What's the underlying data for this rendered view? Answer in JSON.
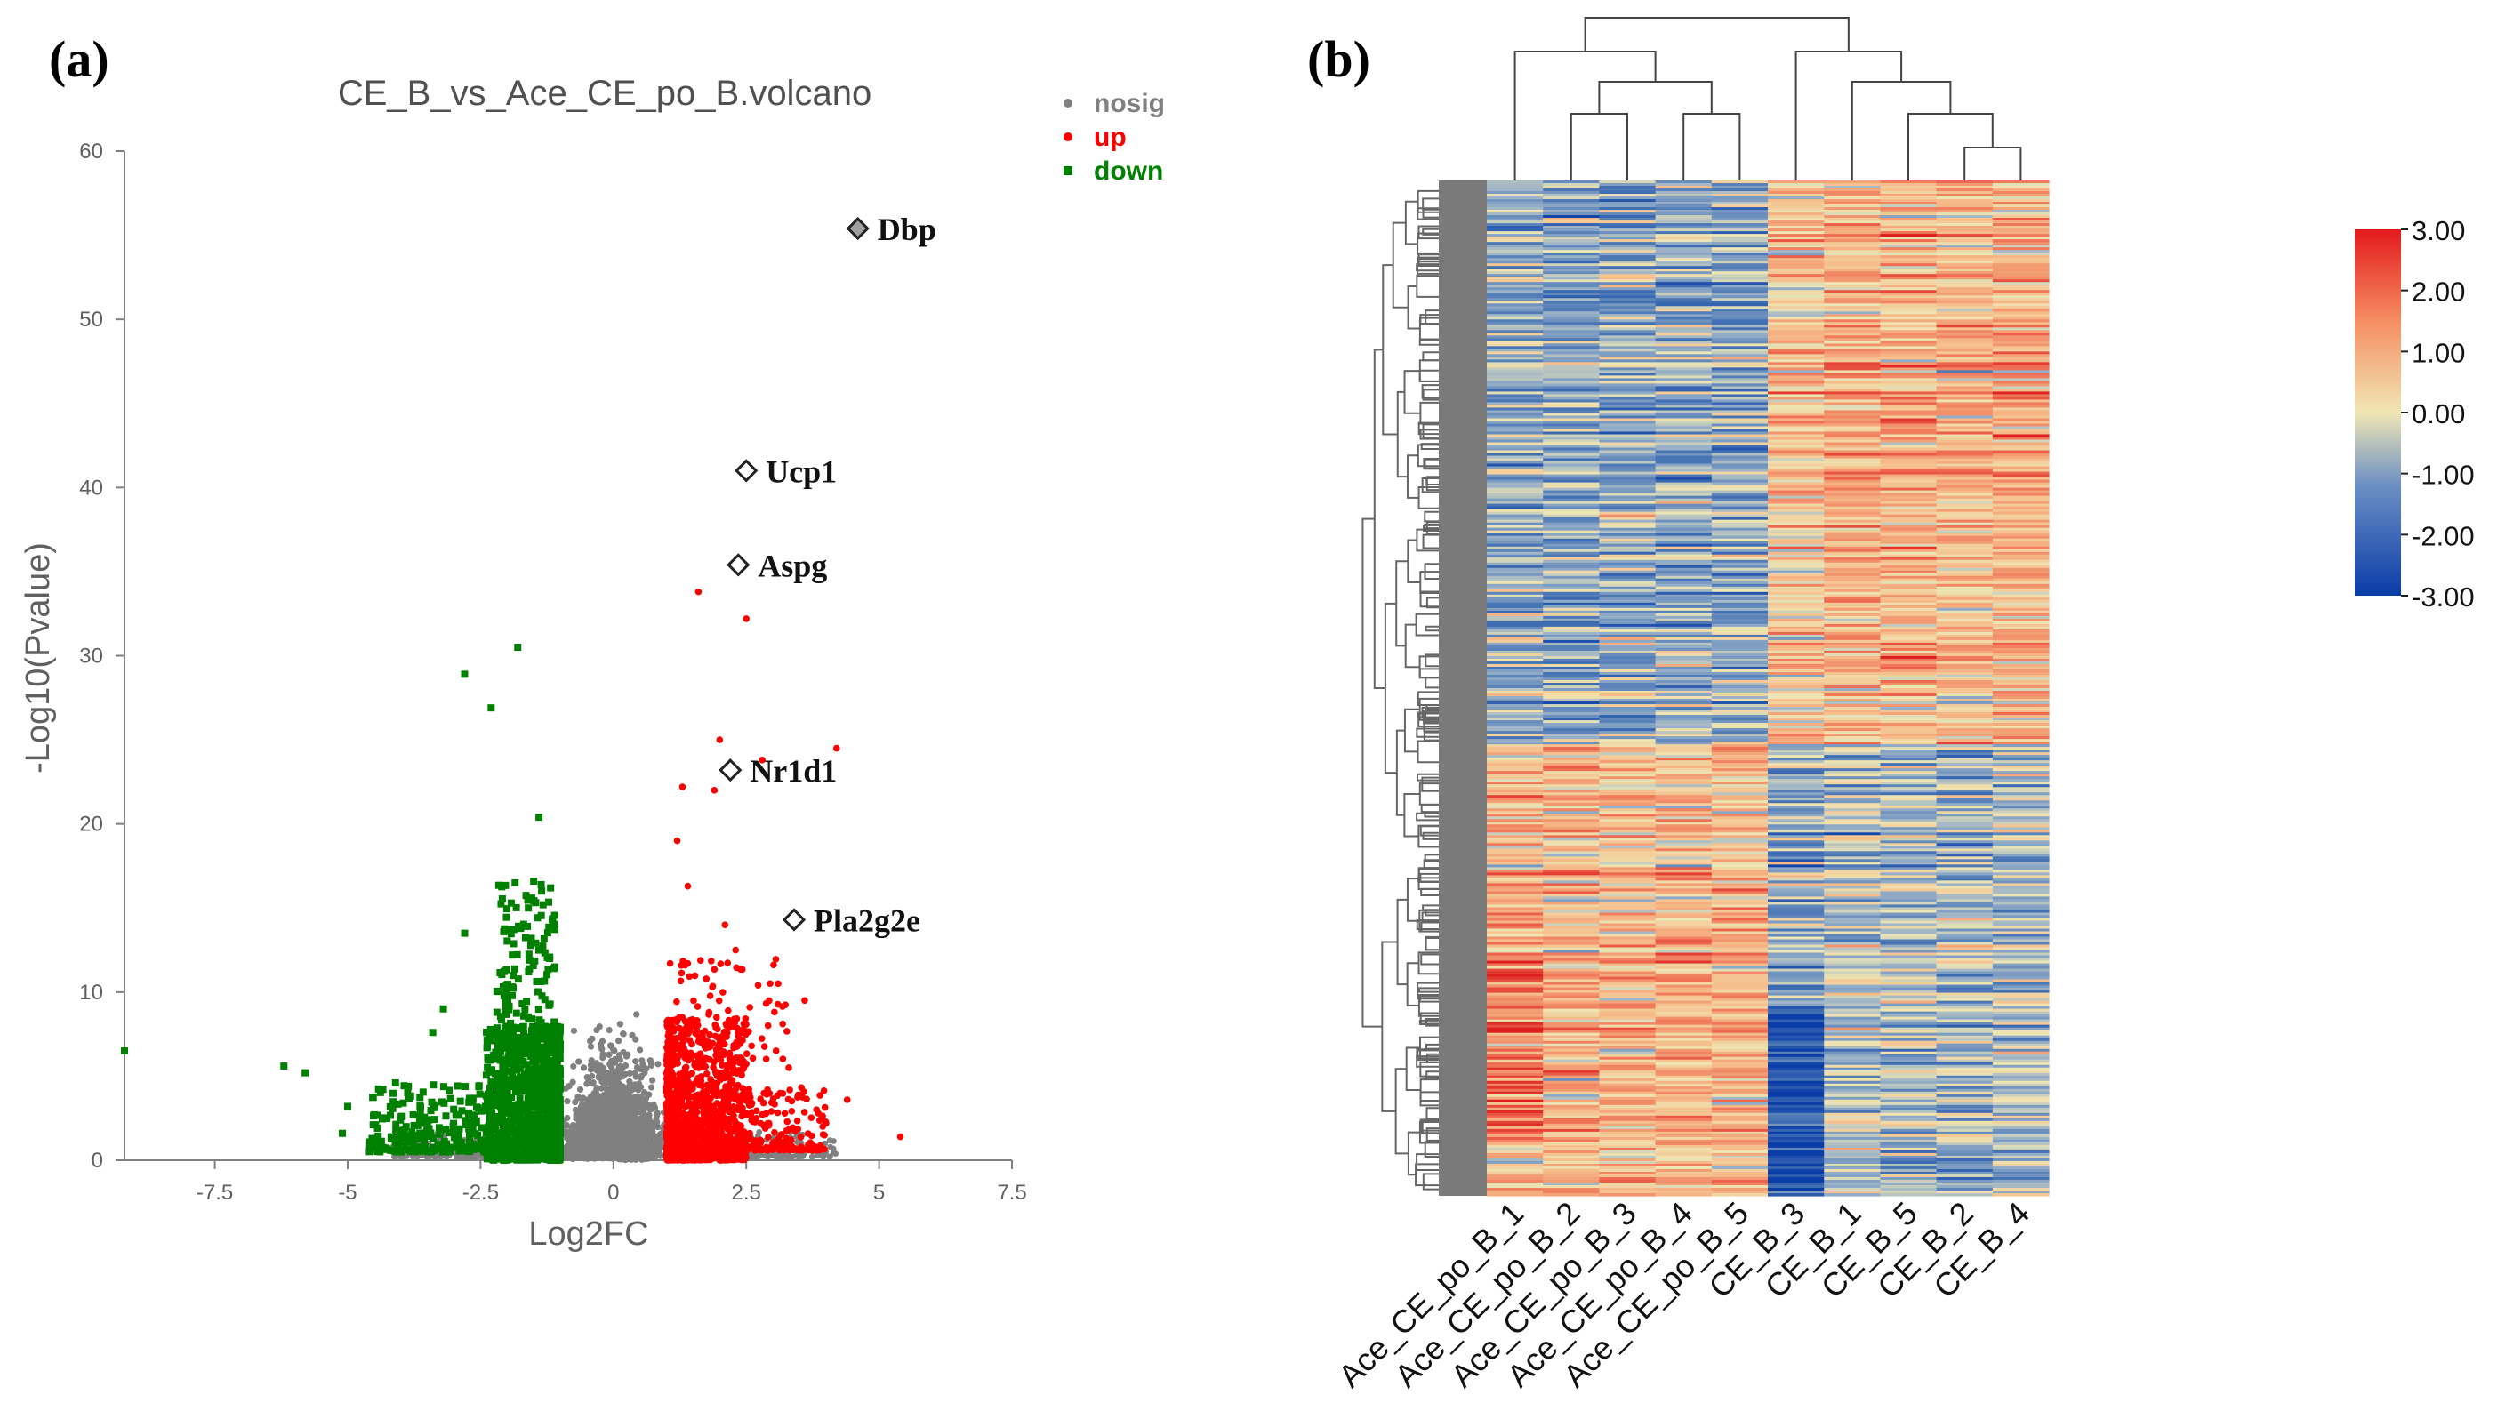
{
  "panel_a": {
    "label": "(a)",
    "chart_data": {
      "type": "scatter",
      "title": "CE_B_vs_Ace_CE_po_B.volcano",
      "xlabel": "Log2FC",
      "ylabel": "-Log10(Pvalue)",
      "xlim": [
        -9.2,
        7.5
      ],
      "ylim": [
        0,
        60
      ],
      "xticks": [
        "-7.5",
        "-5",
        "-2.5",
        "0",
        "2.5",
        "5",
        "7.5"
      ],
      "yticks": [
        "0",
        "10",
        "20",
        "30",
        "40",
        "50",
        "60"
      ],
      "grid": false,
      "legend": {
        "position": "top-right",
        "entries": [
          {
            "name": "nosig",
            "color": "#808080"
          },
          {
            "name": "up",
            "color": "#ff0000"
          },
          {
            "name": "down",
            "color": "#008000"
          }
        ]
      },
      "series": [
        {
          "name": "nosig",
          "color": "#808080",
          "description": "dense cloud for |Log2FC| < 1, -Log10(P) mostly below 8"
        },
        {
          "name": "up",
          "color": "#ff0000",
          "points": [
            [
              1.6,
              33.8
            ],
            [
              2.5,
              32.2
            ],
            [
              2.0,
              25.0
            ],
            [
              4.2,
              24.5
            ],
            [
              2.8,
              23.8
            ],
            [
              1.9,
              22.0
            ],
            [
              1.3,
              22.2
            ],
            [
              1.2,
              19.0
            ],
            [
              1.4,
              16.3
            ],
            [
              2.1,
              14.0
            ],
            [
              3.1,
              10.5
            ],
            [
              3.6,
              9.5
            ],
            [
              4.4,
              3.6
            ],
            [
              5.4,
              1.4
            ],
            [
              4.0,
              2.2
            ],
            [
              2.6,
              6.8
            ],
            [
              1.8,
              8.8
            ],
            [
              2.3,
              12.5
            ],
            [
              3.3,
              5.5
            ],
            [
              2.9,
              4.2
            ]
          ]
        },
        {
          "name": "down",
          "color": "#008000",
          "points": [
            [
              -9.2,
              6.5
            ],
            [
              -6.2,
              5.6
            ],
            [
              -5.8,
              5.2
            ],
            [
              -5.0,
              3.2
            ],
            [
              -5.1,
              1.6
            ],
            [
              -2.8,
              28.9
            ],
            [
              -1.8,
              30.5
            ],
            [
              -2.3,
              26.9
            ],
            [
              -1.4,
              20.4
            ],
            [
              -2.8,
              13.5
            ],
            [
              -1.5,
              16.6
            ],
            [
              -3.2,
              9.0
            ],
            [
              -3.4,
              7.6
            ],
            [
              -4.1,
              4.6
            ],
            [
              -4.5,
              2.7
            ],
            [
              -3.9,
              2.0
            ],
            [
              -1.2,
              12.0
            ],
            [
              -1.6,
              15.0
            ]
          ]
        }
      ],
      "highlighted_genes": [
        {
          "label": "Dbp",
          "x": 4.6,
          "y": 55.4,
          "filled": true
        },
        {
          "label": "Ucp1",
          "x": 2.5,
          "y": 41.0,
          "filled": false
        },
        {
          "label": "Aspg",
          "x": 2.35,
          "y": 35.4,
          "filled": false
        },
        {
          "label": "Nr1d1",
          "x": 2.2,
          "y": 23.2,
          "filled": false
        },
        {
          "label": "Pla2g2e",
          "x": 3.4,
          "y": 14.3,
          "filled": false
        }
      ]
    }
  },
  "panel_b": {
    "label": "(b)",
    "chart_data": {
      "type": "heatmap",
      "columns": [
        "Ace_CE_po_B_1",
        "Ace_CE_po_B_2",
        "Ace_CE_po_B_3",
        "Ace_CE_po_B_4",
        "Ace_CE_po_B_5",
        "CE_B_3",
        "CE_B_1",
        "CE_B_5",
        "CE_B_2",
        "CE_B_4"
      ],
      "colorbar": {
        "min": -3,
        "max": 3,
        "ticks": [
          "3.00",
          "2.00",
          "1.00",
          "0.00",
          "-1.00",
          "-2.00",
          "-3.00"
        ],
        "colors": [
          "#d7191c",
          "#f4a582",
          "#f2e8b0",
          "#4575b4",
          "#0b3ea8"
        ]
      },
      "column_dendrogram": "Ace_CE_po_B samples cluster together; CE_B samples cluster together",
      "blocks": [
        {
          "rows": "top ~55%",
          "Ace_CE_po_B": "low (blue/neutral)",
          "CE_B": "high (red/orange)"
        },
        {
          "rows": "bottom ~45%",
          "Ace_CE_po_B": "high (red/orange)",
          "CE_B": "low (blue/neutral)"
        }
      ]
    }
  }
}
